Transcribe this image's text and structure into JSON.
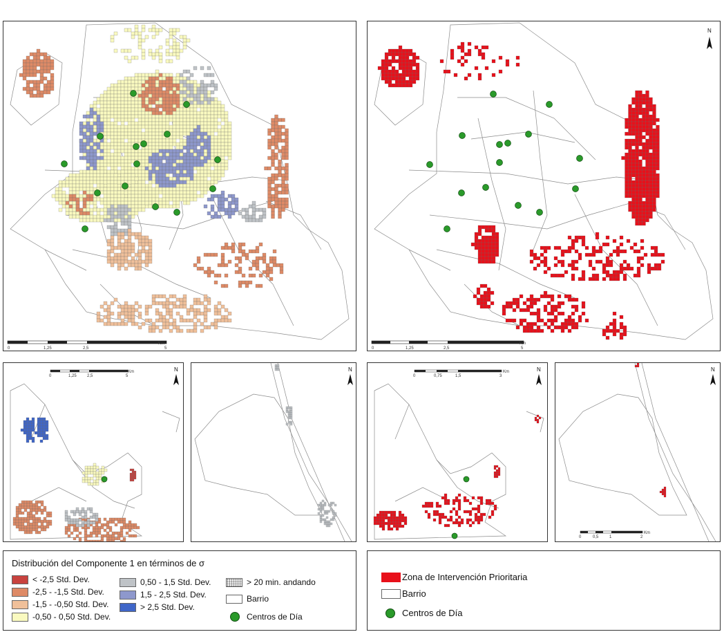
{
  "colors": {
    "lt_m25": "#c8423e",
    "m25_m15": "#de8a66",
    "m15_m05": "#f0c09a",
    "m05_05": "#fafac0",
    "p05_15": "#bfc3c7",
    "p15_25": "#8e98cc",
    "gt_25": "#3f66c8",
    "zip": "#e8101a",
    "centro": "#2a9a2a",
    "barrio_line": "#8a8a8a"
  },
  "north_label": "N",
  "scales": {
    "main": [
      "0",
      "1,25",
      "2,5",
      "5",
      "Km"
    ],
    "small_a": [
      "0",
      "1,25",
      "2,5",
      "5",
      "Km"
    ],
    "small_b": [
      "0",
      "0,75",
      "1,5",
      "3",
      "Km"
    ],
    "small_c": [
      "0",
      "0,5",
      "1",
      "2",
      "Km"
    ]
  },
  "legend_left": {
    "title": "Distribución del Componente 1 en términos de  σ",
    "items": [
      {
        "label": "< -2,5 Std. Dev.",
        "color_key": "lt_m25"
      },
      {
        "label": "-2,5 - -1,5 Std. Dev.",
        "color_key": "m25_m15"
      },
      {
        "label": "-1,5 - -0,50 Std. Dev.",
        "color_key": "m15_m05"
      },
      {
        "label": "-0,50 - 0,50 Std. Dev.",
        "color_key": "m05_05"
      },
      {
        "label": "0,50 - 1,5 Std. Dev.",
        "color_key": "p05_15"
      },
      {
        "label": "1,5 - 2,5 Std. Dev.",
        "color_key": "p15_25"
      },
      {
        "label": "> 2,5 Std. Dev.",
        "color_key": "gt_25"
      },
      {
        "label": "> 20 min. andando"
      },
      {
        "label": "Barrio"
      },
      {
        "label": "Centros de Día"
      }
    ]
  },
  "legend_right": {
    "items": [
      {
        "label": "Zona de Intervención Prioritaria"
      },
      {
        "label": "Barrio"
      },
      {
        "label": "Centros de Día"
      }
    ]
  }
}
